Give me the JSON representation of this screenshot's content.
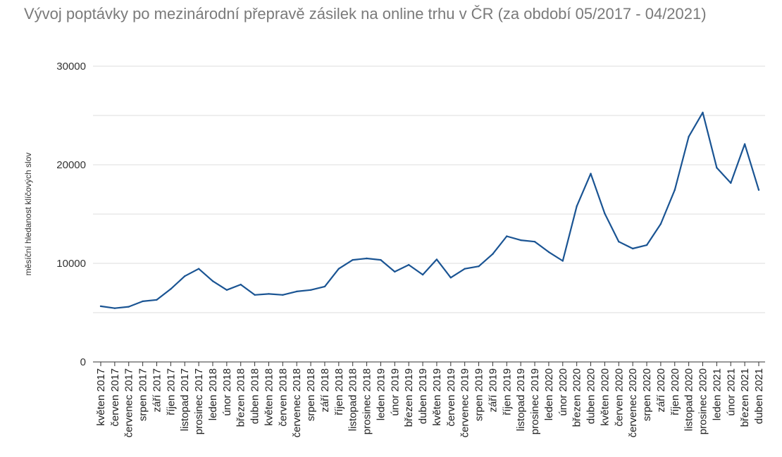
{
  "chart_data": {
    "type": "line",
    "title": "Vývoj poptávky po mezinárodní přepravě zásilek na online trhu v ČR (za období 05/2017 - 04/2021)",
    "xlabel": "",
    "ylabel": "měsíční hledanost klíčových slov",
    "ylim": [
      0,
      30000
    ],
    "yticks": [
      0,
      10000,
      20000,
      30000
    ],
    "grid": true,
    "legend": "none",
    "line_color": "#1a5493",
    "categories": [
      "květen 2017",
      "červen 2017",
      "červenec 2017",
      "srpen 2017",
      "září 2017",
      "říjen 2017",
      "listopad 2017",
      "prosinec 2017",
      "leden 2018",
      "únor 2018",
      "březen 2018",
      "duben 2018",
      "květen 2018",
      "červen 2018",
      "červenec 2018",
      "srpen 2018",
      "září 2018",
      "říjen 2018",
      "listopad 2018",
      "prosinec 2018",
      "leden 2019",
      "únor 2019",
      "březen 2019",
      "duben 2019",
      "květen 2019",
      "červen 2019",
      "červenec 2019",
      "srpen 2019",
      "září 2019",
      "říjen 2019",
      "listopad 2019",
      "prosinec 2019",
      "leden 2020",
      "únor 2020",
      "březen 2020",
      "duben 2020",
      "květen 2020",
      "červen 2020",
      "červenec 2020",
      "srpen 2020",
      "září 2020",
      "říjen 2020",
      "listopad 2020",
      "prosinec 2020",
      "leden 2021",
      "únor 2021",
      "březen 2021",
      "duben 2021"
    ],
    "series": [
      {
        "values": [
          5650,
          5450,
          5600,
          6150,
          6300,
          7400,
          8700,
          9450,
          8200,
          7300,
          7850,
          6800,
          6900,
          6800,
          7150,
          7300,
          7650,
          9450,
          10350,
          10500,
          10350,
          9150,
          9850,
          8850,
          10400,
          8550,
          9450,
          9700,
          10950,
          12750,
          12350,
          12200,
          11150,
          10250,
          15800,
          19100,
          15050,
          12200,
          11500,
          11850,
          14000,
          17450,
          22850,
          25300,
          19700,
          18150,
          22100,
          17450
        ]
      }
    ]
  }
}
